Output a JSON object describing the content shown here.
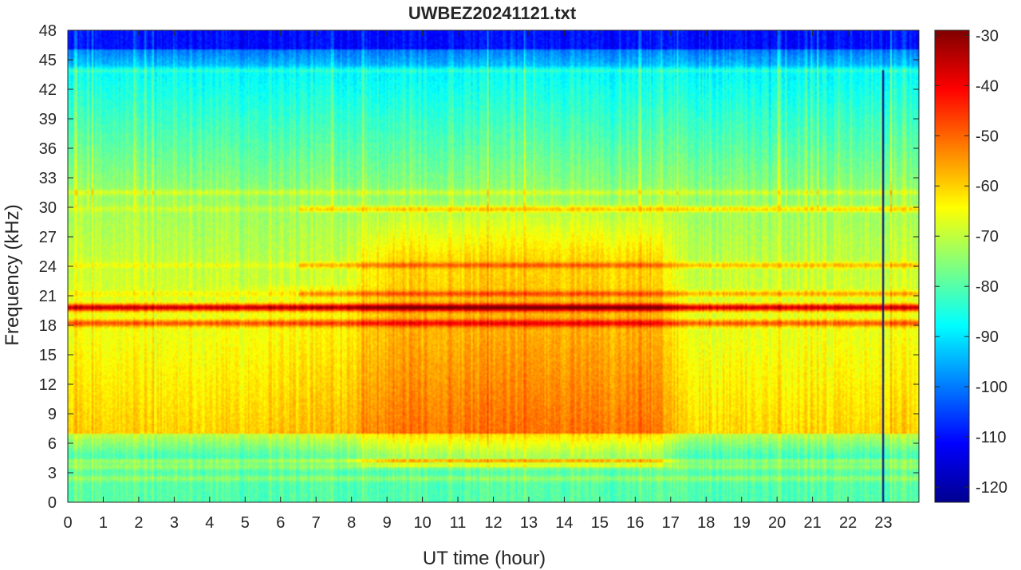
{
  "chart_data": {
    "type": "heatmap",
    "title": "UWBEZ20241121.txt",
    "xlabel": "UT time (hour)",
    "ylabel": "Frequency (kHz)",
    "xlim": [
      0,
      24
    ],
    "ylim": [
      0,
      48
    ],
    "xticks": [
      "0",
      "1",
      "2",
      "3",
      "4",
      "5",
      "6",
      "7",
      "8",
      "9",
      "10",
      "11",
      "12",
      "13",
      "14",
      "15",
      "16",
      "17",
      "18",
      "19",
      "20",
      "21",
      "22",
      "23"
    ],
    "yticks": [
      "0",
      "3",
      "6",
      "9",
      "12",
      "15",
      "18",
      "21",
      "24",
      "27",
      "30",
      "33",
      "36",
      "39",
      "42",
      "45",
      "48"
    ],
    "colorbar": {
      "clim": [
        -123,
        -29
      ],
      "ticks": [
        "-30",
        "-40",
        "-50",
        "-60",
        "-70",
        "-80",
        "-90",
        "-100",
        "-110",
        "-120"
      ],
      "colormap": "jet"
    },
    "features": {
      "strong_lines_khz": [
        19.8,
        18.2
      ],
      "medium_lines_khz": [
        24.1,
        21.2,
        29.8
      ],
      "weak_lines_khz": [
        44.0,
        31.5,
        4.2,
        3.6,
        2.4
      ],
      "daytime_enhancement_hours": [
        9,
        17
      ],
      "dropout_hour": 22.95
    }
  }
}
